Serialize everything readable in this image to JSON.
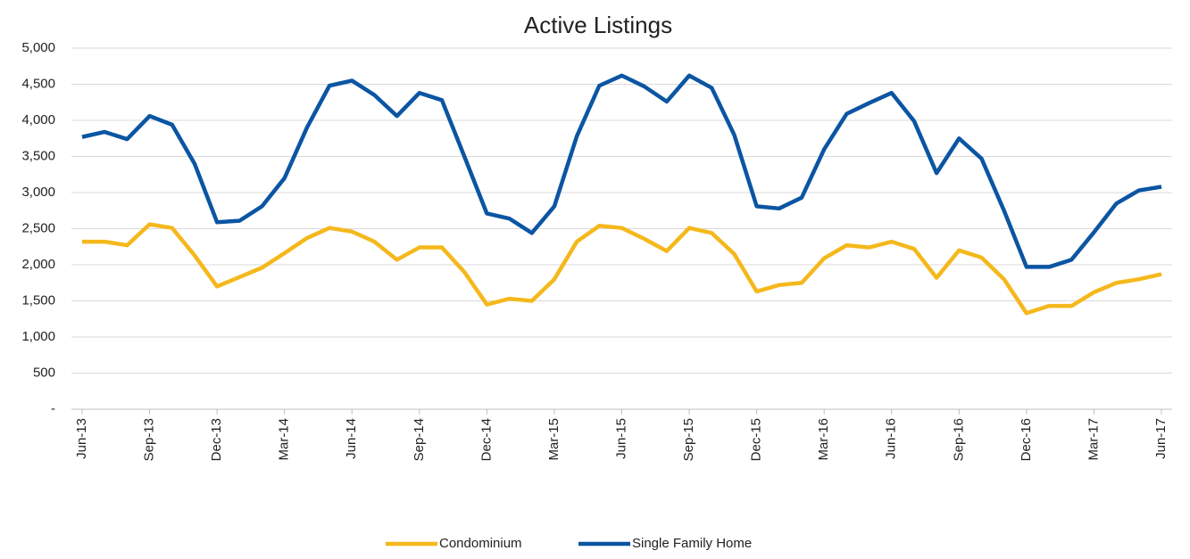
{
  "chart_data": {
    "type": "line",
    "title": "Active Listings",
    "categories": [
      "Jun-13",
      null,
      null,
      "Sep-13",
      null,
      null,
      "Dec-13",
      null,
      null,
      "Mar-14",
      null,
      null,
      "Jun-14",
      null,
      null,
      "Sep-14",
      null,
      null,
      "Dec-14",
      null,
      null,
      "Mar-15",
      null,
      null,
      "Jun-15",
      null,
      null,
      "Sep-15",
      null,
      null,
      "Dec-15",
      null,
      null,
      "Mar-16",
      null,
      null,
      "Jun-16",
      null,
      null,
      "Sep-16",
      null,
      null,
      "Dec-16",
      null,
      null,
      "Mar-17",
      null,
      null,
      "Jun-17"
    ],
    "series": [
      {
        "name": "Condominium",
        "color": "#f5b81c",
        "values": [
          2320,
          2320,
          2270,
          2560,
          2510,
          2130,
          1700,
          1830,
          1960,
          2160,
          2370,
          2510,
          2460,
          2320,
          2070,
          2240,
          2240,
          1900,
          1450,
          1530,
          1500,
          1800,
          2320,
          2540,
          2510,
          2360,
          2190,
          2510,
          2440,
          2150,
          1630,
          1720,
          1750,
          2090,
          2270,
          2240,
          2320,
          2220,
          1820,
          2200,
          2100,
          1800,
          1330,
          1430,
          1430,
          1620,
          1750,
          1800,
          1870
        ]
      },
      {
        "name": "Single Family Home",
        "color": "#0b55a3",
        "values": [
          3770,
          3840,
          3740,
          4060,
          3940,
          3400,
          2590,
          2610,
          2810,
          3200,
          3900,
          4480,
          4550,
          4350,
          4060,
          4380,
          4280,
          3500,
          2710,
          2640,
          2440,
          2810,
          3780,
          4480,
          4620,
          4470,
          4260,
          4620,
          4450,
          3800,
          2810,
          2780,
          2930,
          3600,
          4090,
          4240,
          4380,
          3990,
          3270,
          3750,
          3470,
          2750,
          1970,
          1970,
          2070,
          2450,
          2850,
          3030,
          3080
        ]
      }
    ],
    "ylim": [
      0,
      5000
    ],
    "yticks": [
      {
        "value": 0,
        "label": "-"
      },
      500,
      {
        "value": 1000,
        "label": "1,000"
      },
      {
        "value": 1500,
        "label": "1,500"
      },
      {
        "value": 2000,
        "label": "2,000"
      },
      {
        "value": 2500,
        "label": "2,500"
      },
      {
        "value": 3000,
        "label": "3,000"
      },
      {
        "value": 3500,
        "label": "3,500"
      },
      {
        "value": 4000,
        "label": "4,000"
      },
      {
        "value": 4500,
        "label": "4,500"
      },
      {
        "value": 5000,
        "label": "5,000"
      }
    ],
    "grid": true,
    "legend": "bottom"
  }
}
